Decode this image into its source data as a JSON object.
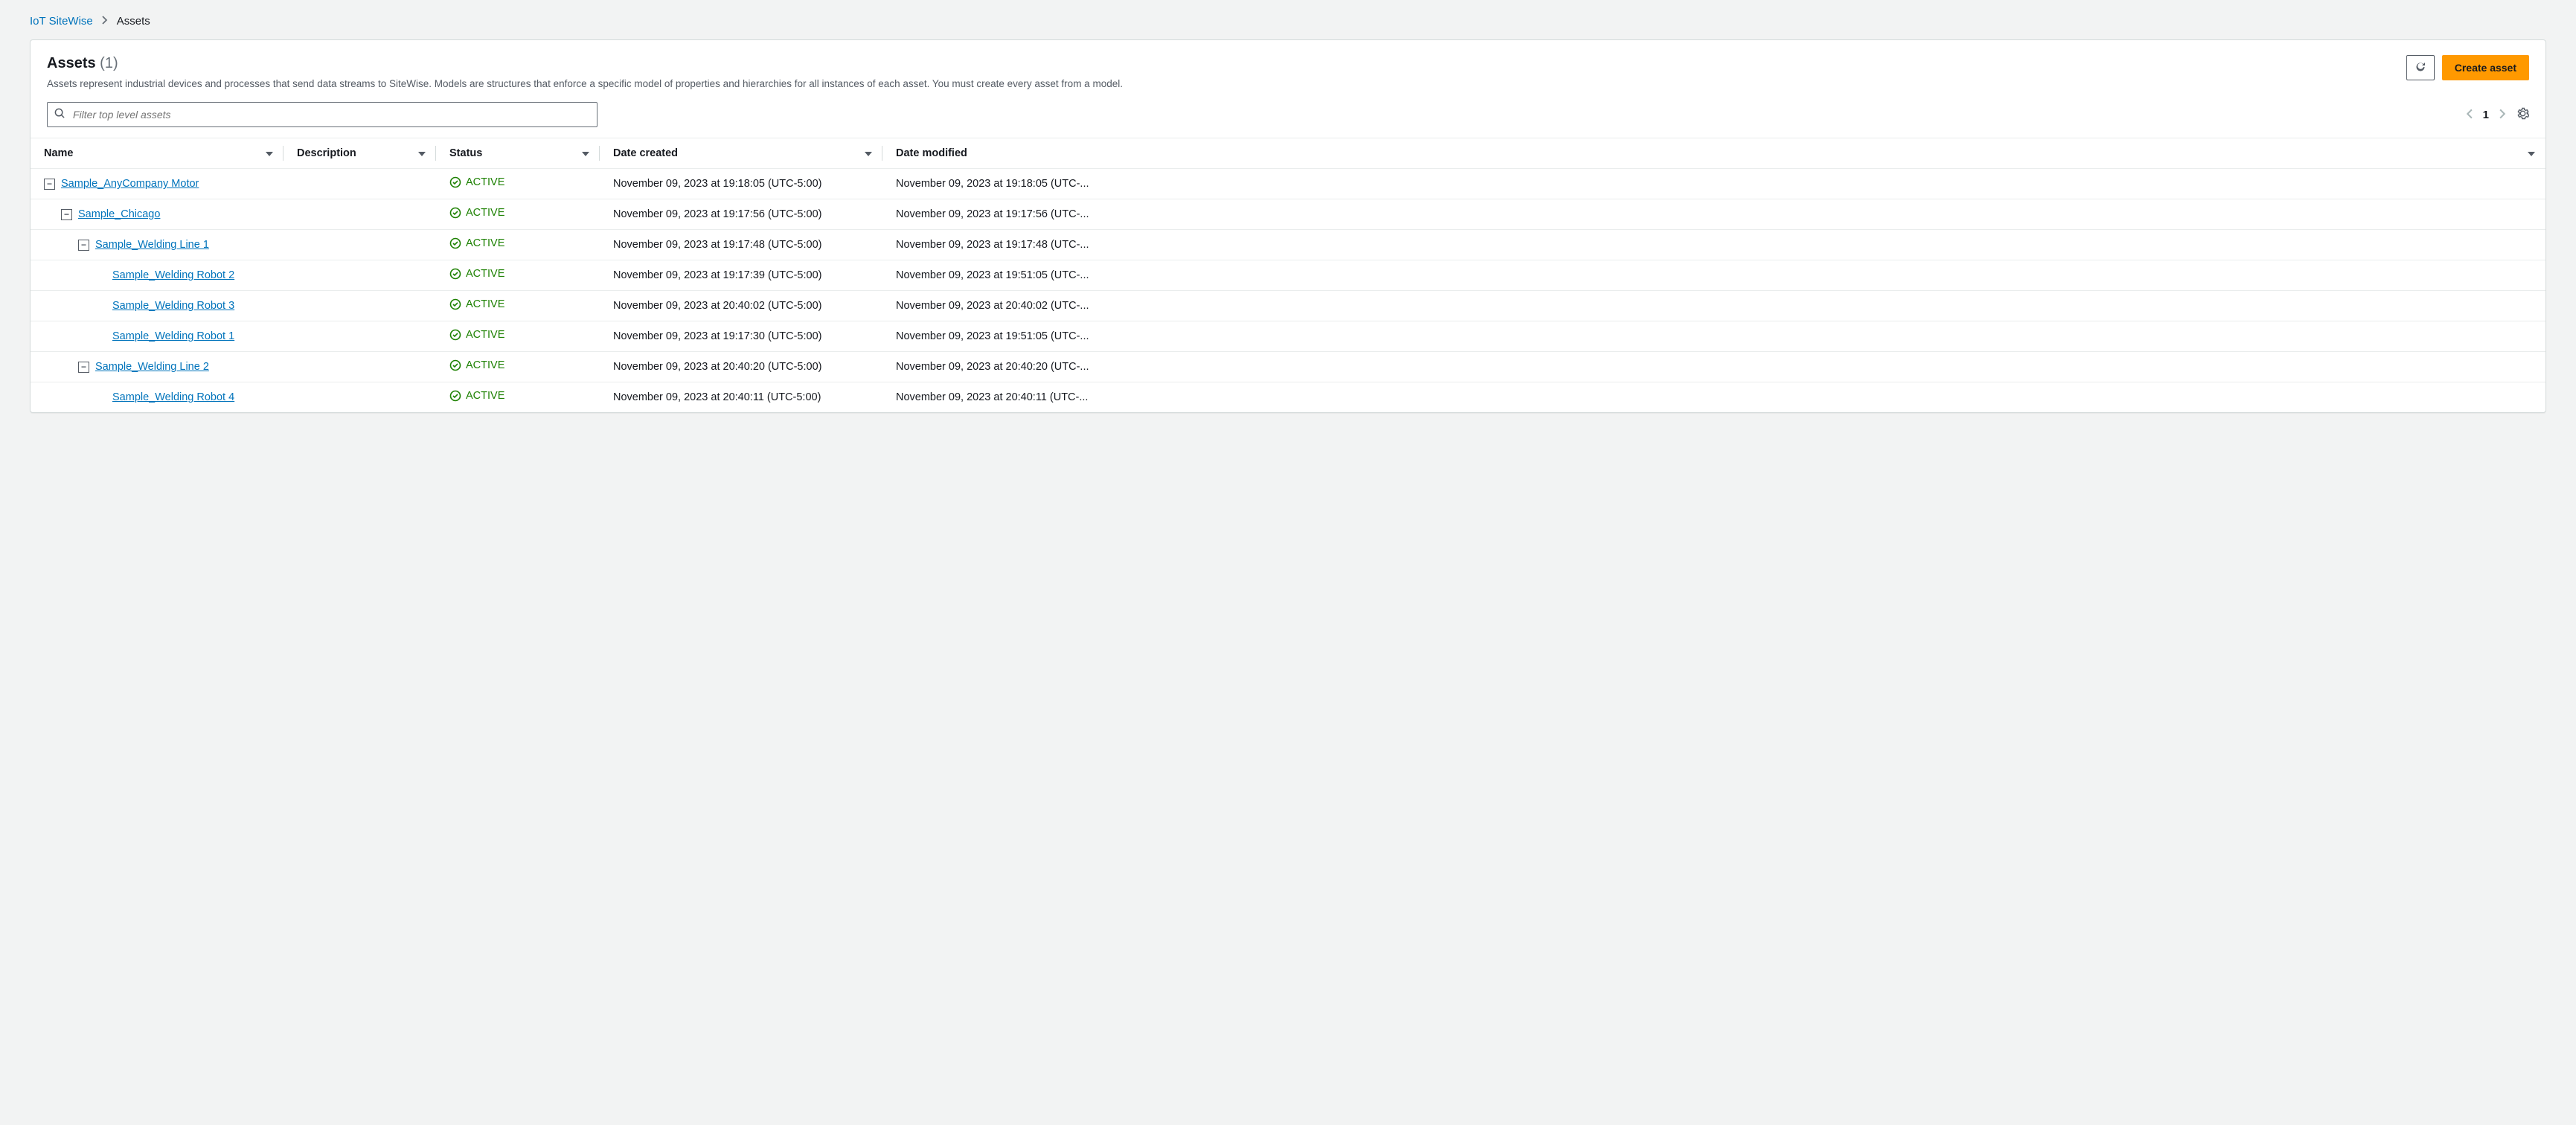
{
  "breadcrumb": {
    "root": "IoT SiteWise",
    "current": "Assets"
  },
  "header": {
    "title": "Assets",
    "count": "(1)",
    "description": "Assets represent industrial devices and processes that send data streams to SiteWise. Models are structures that enforce a specific model of properties and hierarchies for all instances of each asset. You must create every asset from a model.",
    "create_label": "Create asset"
  },
  "search": {
    "placeholder": "Filter top level assets"
  },
  "pagination": {
    "page": "1"
  },
  "columns": {
    "name": "Name",
    "description": "Description",
    "status": "Status",
    "created": "Date created",
    "modified": "Date modified"
  },
  "status_active": "ACTIVE",
  "rows": [
    {
      "indent": 0,
      "toggle": true,
      "name": "Sample_AnyCompany Motor",
      "status": "ACTIVE",
      "created": "November 09, 2023 at 19:18:05 (UTC-5:00)",
      "modified": "November 09, 2023 at 19:18:05 (UTC-..."
    },
    {
      "indent": 1,
      "toggle": true,
      "name": "Sample_Chicago",
      "status": "ACTIVE",
      "created": "November 09, 2023 at 19:17:56 (UTC-5:00)",
      "modified": "November 09, 2023 at 19:17:56 (UTC-..."
    },
    {
      "indent": 2,
      "toggle": true,
      "name": "Sample_Welding Line 1",
      "status": "ACTIVE",
      "created": "November 09, 2023 at 19:17:48 (UTC-5:00)",
      "modified": "November 09, 2023 at 19:17:48 (UTC-..."
    },
    {
      "indent": 3,
      "toggle": false,
      "name": "Sample_Welding Robot 2",
      "status": "ACTIVE",
      "created": "November 09, 2023 at 19:17:39 (UTC-5:00)",
      "modified": "November 09, 2023 at 19:51:05 (UTC-..."
    },
    {
      "indent": 3,
      "toggle": false,
      "name": "Sample_Welding Robot 3",
      "status": "ACTIVE",
      "created": "November 09, 2023 at 20:40:02 (UTC-5:00)",
      "modified": "November 09, 2023 at 20:40:02 (UTC-..."
    },
    {
      "indent": 3,
      "toggle": false,
      "name": "Sample_Welding Robot 1",
      "status": "ACTIVE",
      "created": "November 09, 2023 at 19:17:30 (UTC-5:00)",
      "modified": "November 09, 2023 at 19:51:05 (UTC-..."
    },
    {
      "indent": 2,
      "toggle": true,
      "name": "Sample_Welding Line 2",
      "status": "ACTIVE",
      "created": "November 09, 2023 at 20:40:20 (UTC-5:00)",
      "modified": "November 09, 2023 at 20:40:20 (UTC-..."
    },
    {
      "indent": 3,
      "toggle": false,
      "name": "Sample_Welding Robot 4",
      "status": "ACTIVE",
      "created": "November 09, 2023 at 20:40:11 (UTC-5:00)",
      "modified": "November 09, 2023 at 20:40:11 (UTC-..."
    }
  ],
  "colors": {
    "link": "#0073bb",
    "primary": "#ff9900",
    "success": "#1d8102",
    "border": "#d5dbdb",
    "text_muted": "#687078"
  }
}
